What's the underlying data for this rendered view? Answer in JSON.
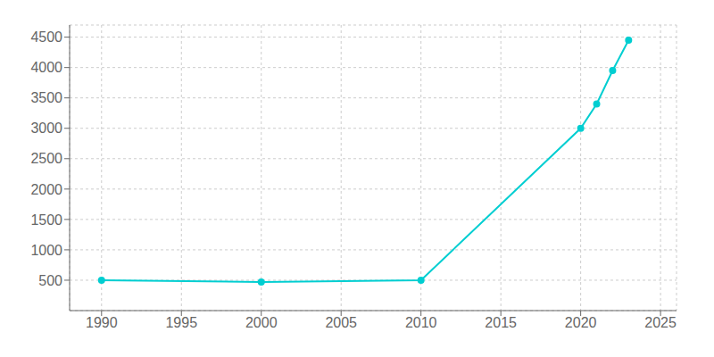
{
  "chart_data": {
    "type": "line",
    "x": [
      1990,
      2000,
      2010,
      2020,
      2021,
      2022,
      2023
    ],
    "values": [
      500,
      470,
      500,
      3000,
      3400,
      3950,
      4450
    ],
    "color": "#00CED1",
    "marker": "circle",
    "xlim": [
      1988,
      2026
    ],
    "ylim": [
      0,
      4700
    ],
    "xticks": [
      1990,
      1995,
      2000,
      2005,
      2010,
      2015,
      2020,
      2025
    ],
    "yticks": [
      500,
      1000,
      1500,
      2000,
      2500,
      3000,
      3500,
      4000,
      4500
    ],
    "grid": true
  }
}
